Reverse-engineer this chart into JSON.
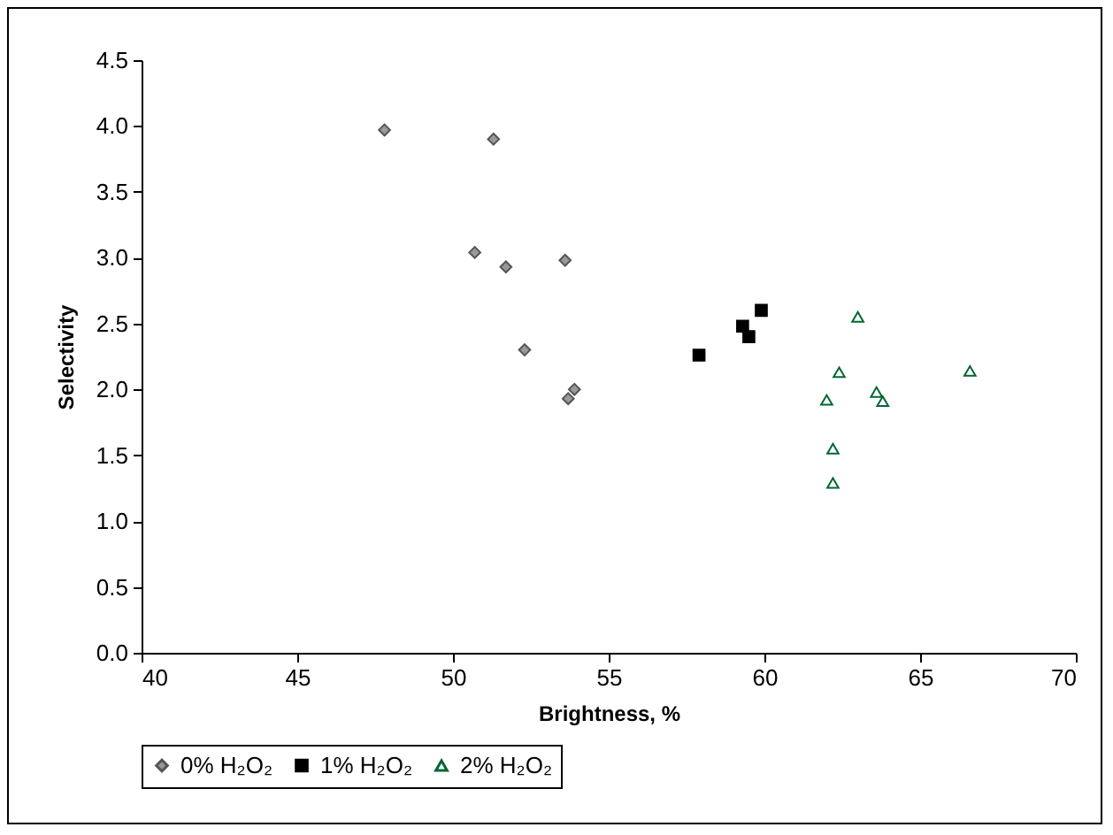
{
  "chart_data": {
    "type": "scatter",
    "xlabel": "Brightness, %",
    "ylabel": "Selectivity",
    "xlim": [
      40,
      70
    ],
    "xticks": [
      40,
      45,
      50,
      55,
      60,
      65,
      70
    ],
    "ylim": [
      0,
      4.5
    ],
    "yticks": [
      {
        "value": 0,
        "label": "0.0"
      },
      0.5,
      {
        "value": 1,
        "label": "1.0"
      },
      1.5,
      {
        "value": 2,
        "label": "2.0"
      },
      2.5,
      {
        "value": 3,
        "label": "3.0"
      },
      3.5,
      {
        "value": 4,
        "label": "4.0"
      },
      4.5
    ],
    "grid": false,
    "legend": "bottom",
    "series": [
      {
        "name": "0% H₂O₂",
        "color": "#999999",
        "marker": "diamond",
        "x": [
          47.8,
          51.3,
          50.7,
          51.7,
          53.6,
          52.3,
          53.9,
          53.7
        ],
        "values": [
          3.97,
          3.9,
          3.04,
          2.93,
          2.98,
          2.3,
          2.0,
          1.93
        ]
      },
      {
        "name": "1% H₂O₂",
        "color": "#000000",
        "marker": "square",
        "x": [
          59.9,
          59.3,
          59.5,
          57.9
        ],
        "values": [
          2.6,
          2.48,
          2.4,
          2.26
        ]
      },
      {
        "name": "2% H₂O₂",
        "color": "#006633",
        "marker": "triangle",
        "x": [
          63.0,
          62.4,
          66.6,
          62.0,
          63.6,
          63.8,
          62.2,
          62.2
        ],
        "values": [
          2.55,
          2.13,
          2.14,
          1.92,
          1.98,
          1.91,
          1.55,
          1.29
        ]
      }
    ]
  }
}
